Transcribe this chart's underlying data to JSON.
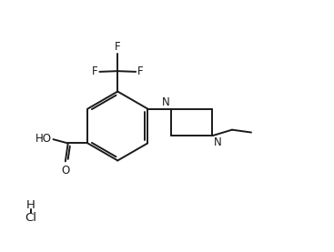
{
  "background_color": "#ffffff",
  "line_color": "#1a1a1a",
  "text_color": "#1a1a1a",
  "line_width": 1.4,
  "font_size": 8.5,
  "figsize": [
    3.67,
    2.77
  ],
  "dpi": 100,
  "xlim": [
    0,
    10
  ],
  "ylim": [
    0,
    7.5
  ]
}
